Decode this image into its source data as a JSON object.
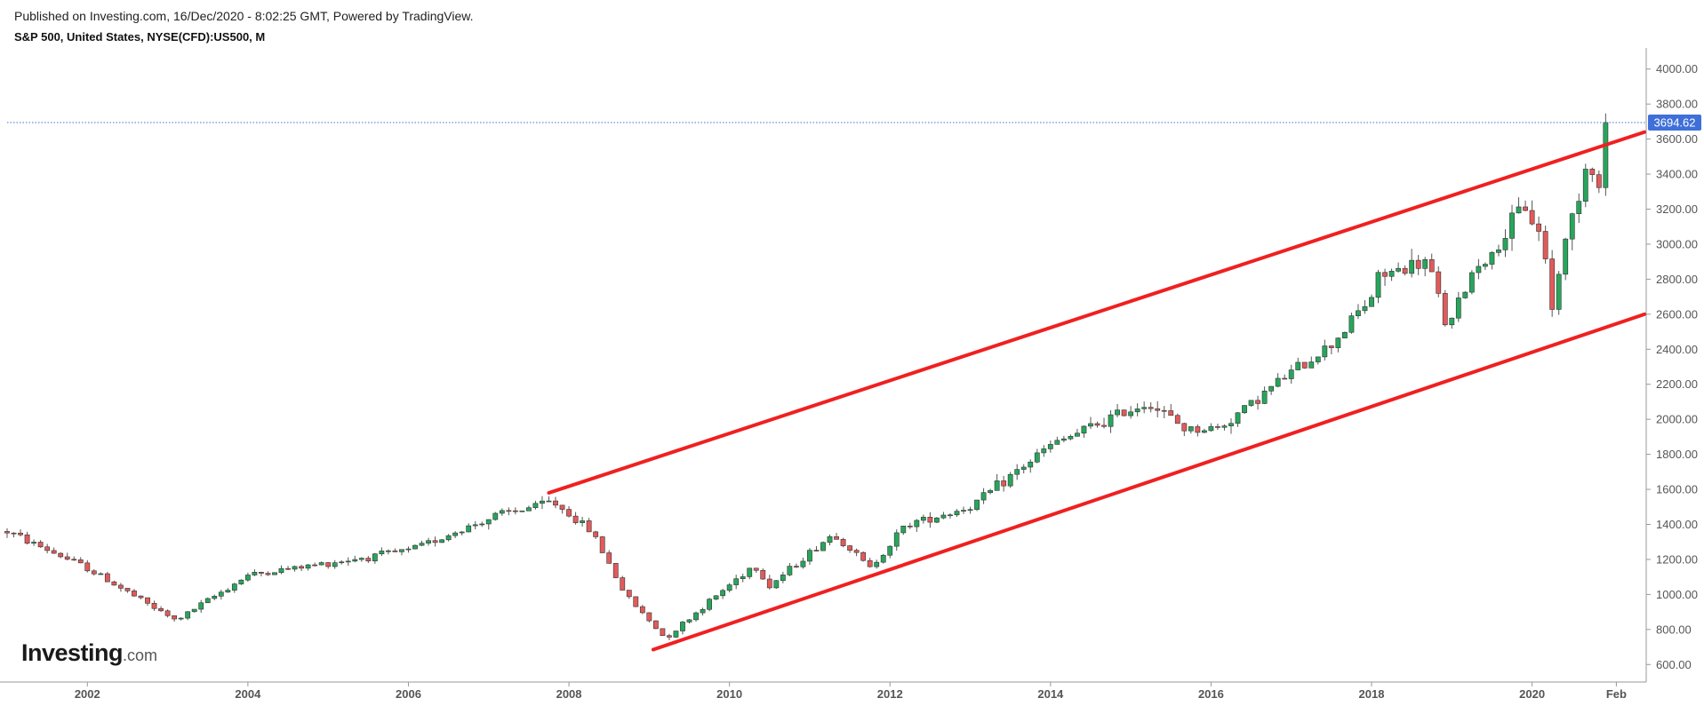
{
  "header": {
    "published": "Published on Investing.com, 16/Dec/2020 - 8:02:25 GMT, Powered by TradingView.",
    "symbol": "S&P 500, United States, NYSE(CFD):US500, M"
  },
  "logo": {
    "main": "Investing",
    "suffix": ".com"
  },
  "colors": {
    "up": "#26a65b",
    "down": "#e25a5a",
    "wick": "#555555",
    "trendline": "#f02020",
    "last_price_line": "#3f6fd8",
    "last_price_tag": "#3f6fd8",
    "axis": "#999999"
  },
  "chart_data": {
    "type": "candlestick",
    "interval": "monthly",
    "ylim": [
      500,
      4100
    ],
    "yticks": [
      600,
      800,
      1000,
      1200,
      1400,
      1600,
      1800,
      2000,
      2200,
      2400,
      2600,
      2800,
      3000,
      3200,
      3400,
      3600,
      3800,
      4000
    ],
    "ytick_labels": [
      "600.00",
      "800.00",
      "1000.00",
      "1200.00",
      "1400.00",
      "1600.00",
      "1800.00",
      "2000.00",
      "2200.00",
      "2400.00",
      "2600.00",
      "2800.00",
      "3000.00",
      "3200.00",
      "3400.00",
      "3600.00",
      "3800.00",
      "4000.00"
    ],
    "xlim": [
      2001.0,
      2021.4
    ],
    "xticks": [
      2002,
      2004,
      2006,
      2008,
      2010,
      2012,
      2014,
      2016,
      2018,
      2020,
      2021.05
    ],
    "xtick_labels": [
      "2002",
      "2004",
      "2006",
      "2008",
      "2010",
      "2012",
      "2014",
      "2016",
      "2018",
      "2020",
      "Feb"
    ],
    "last_price": 3694.62,
    "last_price_label": "3694.62",
    "trendlines": [
      {
        "name": "upper",
        "x": [
          2007.75,
          2021.4
        ],
        "y": [
          1580,
          3640
        ]
      },
      {
        "name": "lower",
        "x": [
          2009.05,
          2021.4
        ],
        "y": [
          685,
          2600
        ]
      }
    ],
    "anchors": {
      "x": [
        2001.0,
        2002.0,
        2003.1,
        2004.0,
        2006.0,
        2007.1,
        2007.8,
        2008.3,
        2008.7,
        2009.2,
        2010.3,
        2010.5,
        2011.3,
        2011.75,
        2012.2,
        2013.0,
        2014.0,
        2015.2,
        2015.7,
        2016.1,
        2016.8,
        2017.5,
        2018.0,
        2018.1,
        2018.7,
        2018.95,
        2019.3,
        2019.5,
        2019.9,
        2020.15,
        2020.25,
        2020.35,
        2020.7,
        2020.85,
        2020.95
      ],
      "y": [
        1360,
        1150,
        850,
        1110,
        1250,
        1450,
        1530,
        1350,
        1000,
        750,
        1170,
        1050,
        1350,
        1150,
        1400,
        1500,
        1850,
        2100,
        1940,
        1950,
        2200,
        2430,
        2700,
        2820,
        2900,
        2510,
        2890,
        2930,
        3230,
        3000,
        2620,
        2900,
        3500,
        3290,
        3690
      ]
    }
  }
}
